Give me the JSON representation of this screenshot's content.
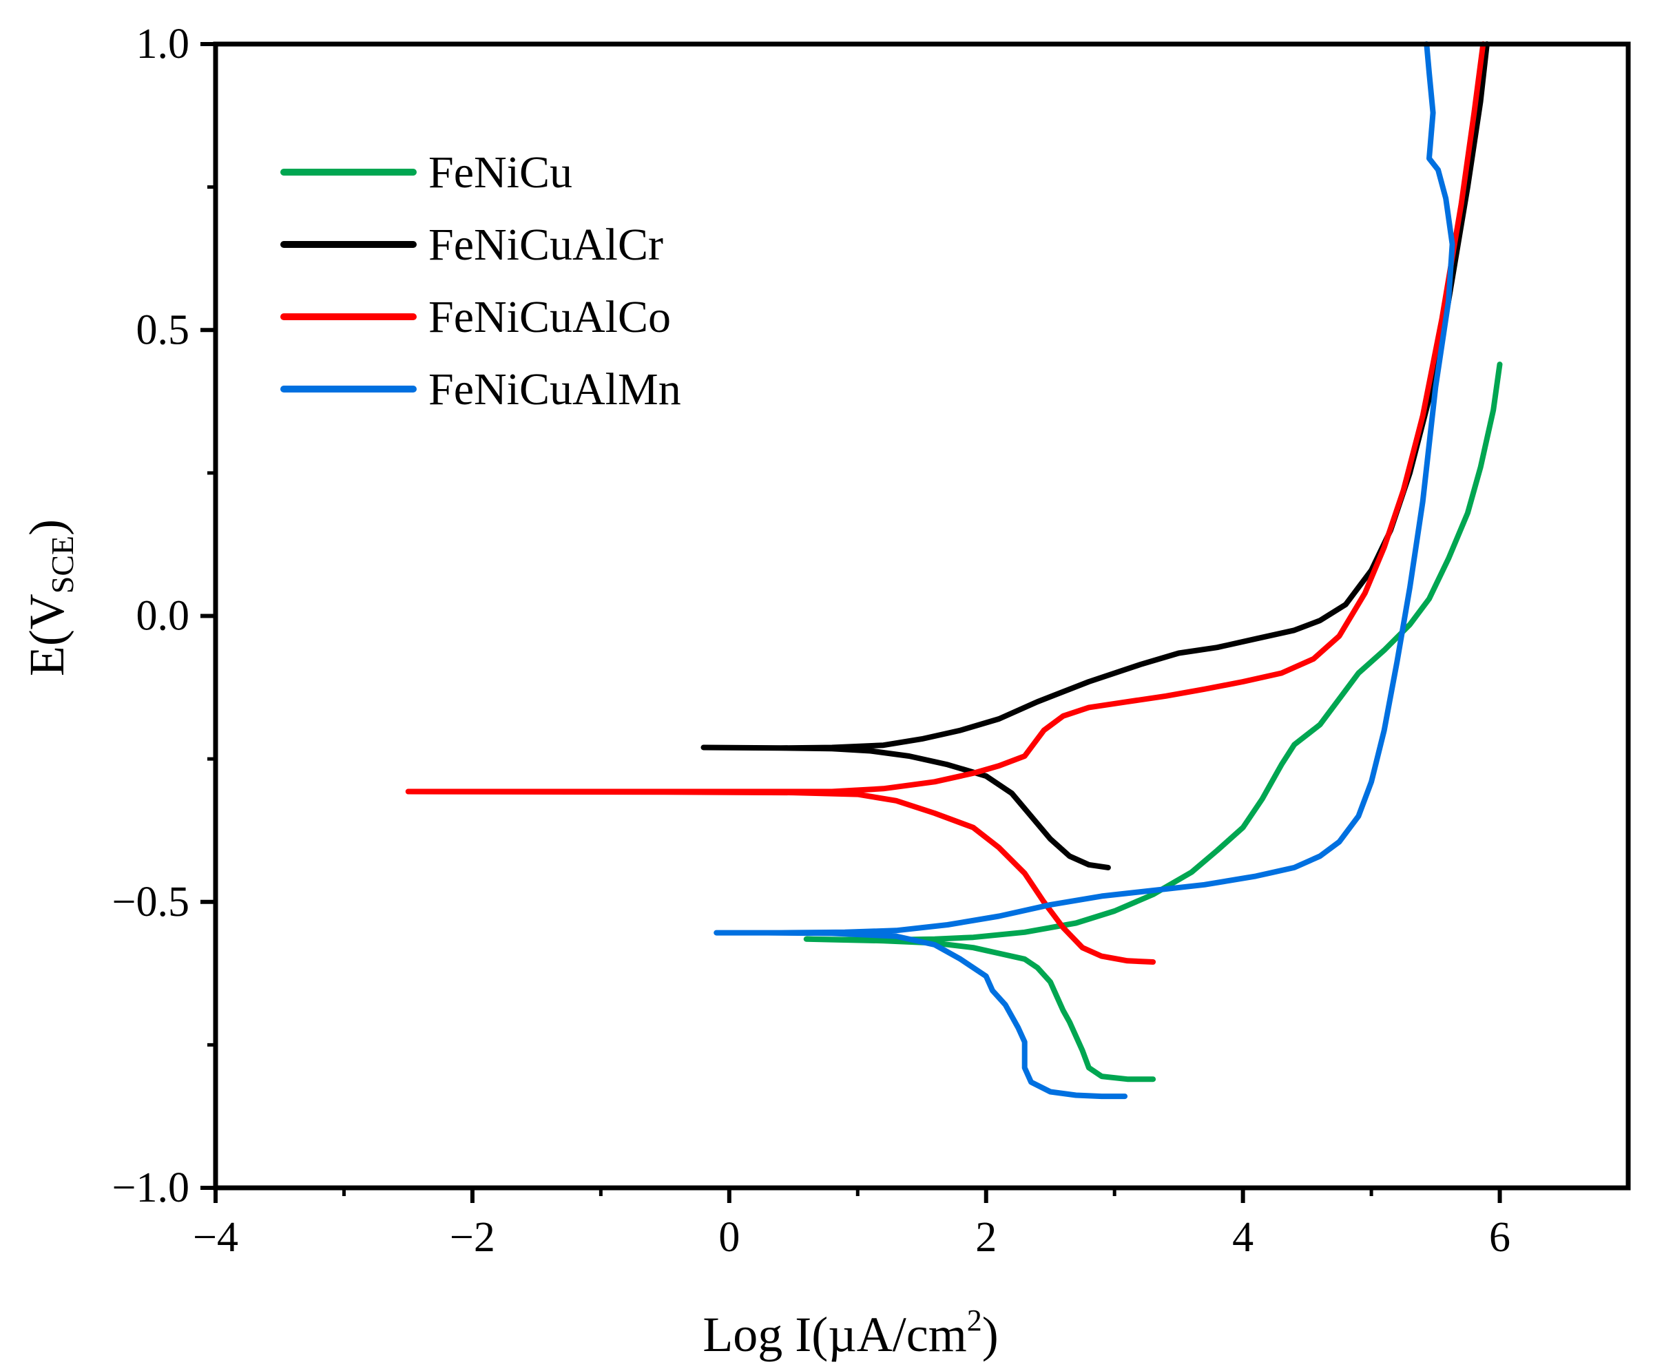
{
  "chart_data": {
    "type": "line",
    "title": "",
    "xlabel": "Log I(µA/cm",
    "xlabel_sup": "2",
    "xlabel_end": ")",
    "ylabel": "E(V",
    "ylabel_sub": "SCE",
    "ylabel_end": ")",
    "xlim": [
      -4,
      7
    ],
    "ylim": [
      -1.0,
      1.0
    ],
    "x_ticks": [
      -4,
      -2,
      0,
      2,
      4,
      6
    ],
    "x_tick_labels": [
      "−4",
      "−2",
      "0",
      "2",
      "4",
      "6"
    ],
    "y_ticks": [
      -1.0,
      -0.5,
      0.0,
      0.5,
      1.0
    ],
    "y_tick_labels": [
      "−1.0",
      "−0.5",
      "0.0",
      "0.5",
      "1.0"
    ],
    "grid": false,
    "legend_position": "top-left",
    "series": [
      {
        "name": "FeNiCu",
        "color": "#00a651",
        "points": [
          [
            3.3,
            -0.81
          ],
          [
            3.1,
            -0.81
          ],
          [
            2.9,
            -0.805
          ],
          [
            2.8,
            -0.79
          ],
          [
            2.75,
            -0.76
          ],
          [
            2.65,
            -0.71
          ],
          [
            2.6,
            -0.69
          ],
          [
            2.55,
            -0.665
          ],
          [
            2.5,
            -0.64
          ],
          [
            2.4,
            -0.615
          ],
          [
            2.3,
            -0.6
          ],
          [
            2.1,
            -0.59
          ],
          [
            1.9,
            -0.58
          ],
          [
            1.6,
            -0.572
          ],
          [
            1.2,
            -0.568
          ],
          [
            0.8,
            -0.566
          ],
          [
            0.6,
            -0.565
          ],
          [
            0.9,
            -0.566
          ],
          [
            1.3,
            -0.566
          ],
          [
            1.6,
            -0.565
          ],
          [
            1.9,
            -0.562
          ],
          [
            2.3,
            -0.553
          ],
          [
            2.7,
            -0.537
          ],
          [
            3.0,
            -0.516
          ],
          [
            3.3,
            -0.487
          ],
          [
            3.6,
            -0.448
          ],
          [
            3.8,
            -0.41
          ],
          [
            4.0,
            -0.37
          ],
          [
            4.15,
            -0.32
          ],
          [
            4.3,
            -0.26
          ],
          [
            4.4,
            -0.225
          ],
          [
            4.6,
            -0.19
          ],
          [
            4.75,
            -0.145
          ],
          [
            4.9,
            -0.1
          ],
          [
            5.1,
            -0.06
          ],
          [
            5.3,
            -0.015
          ],
          [
            5.45,
            0.03
          ],
          [
            5.6,
            0.1
          ],
          [
            5.75,
            0.18
          ],
          [
            5.85,
            0.26
          ],
          [
            5.95,
            0.36
          ],
          [
            6.0,
            0.44
          ]
        ]
      },
      {
        "name": "FeNiCuAlCr",
        "color": "#000000",
        "points": [
          [
            2.95,
            -0.44
          ],
          [
            2.8,
            -0.435
          ],
          [
            2.65,
            -0.42
          ],
          [
            2.5,
            -0.39
          ],
          [
            2.35,
            -0.35
          ],
          [
            2.2,
            -0.31
          ],
          [
            2.0,
            -0.28
          ],
          [
            1.7,
            -0.26
          ],
          [
            1.4,
            -0.245
          ],
          [
            1.1,
            -0.236
          ],
          [
            0.8,
            -0.232
          ],
          [
            0.4,
            -0.231
          ],
          [
            -0.2,
            -0.23
          ],
          [
            0.4,
            -0.231
          ],
          [
            0.8,
            -0.23
          ],
          [
            1.2,
            -0.226
          ],
          [
            1.5,
            -0.215
          ],
          [
            1.8,
            -0.2
          ],
          [
            2.1,
            -0.18
          ],
          [
            2.4,
            -0.15
          ],
          [
            2.8,
            -0.115
          ],
          [
            3.2,
            -0.085
          ],
          [
            3.5,
            -0.065
          ],
          [
            3.8,
            -0.055
          ],
          [
            4.1,
            -0.04
          ],
          [
            4.4,
            -0.025
          ],
          [
            4.6,
            -0.008
          ],
          [
            4.8,
            0.02
          ],
          [
            5.0,
            0.08
          ],
          [
            5.15,
            0.15
          ],
          [
            5.3,
            0.25
          ],
          [
            5.45,
            0.38
          ],
          [
            5.6,
            0.55
          ],
          [
            5.75,
            0.75
          ],
          [
            5.85,
            0.9
          ],
          [
            5.9,
            1.0
          ]
        ]
      },
      {
        "name": "FeNiCuAlCo",
        "color": "#ff0000",
        "points": [
          [
            3.3,
            -0.605
          ],
          [
            3.1,
            -0.603
          ],
          [
            2.9,
            -0.595
          ],
          [
            2.75,
            -0.58
          ],
          [
            2.6,
            -0.545
          ],
          [
            2.45,
            -0.5
          ],
          [
            2.3,
            -0.45
          ],
          [
            2.1,
            -0.405
          ],
          [
            1.9,
            -0.37
          ],
          [
            1.6,
            -0.345
          ],
          [
            1.3,
            -0.323
          ],
          [
            1.0,
            -0.312
          ],
          [
            0.5,
            -0.309
          ],
          [
            -0.5,
            -0.308
          ],
          [
            -2.5,
            -0.307
          ],
          [
            -0.5,
            -0.307
          ],
          [
            0.3,
            -0.307
          ],
          [
            0.8,
            -0.307
          ],
          [
            1.2,
            -0.302
          ],
          [
            1.6,
            -0.29
          ],
          [
            1.9,
            -0.275
          ],
          [
            2.1,
            -0.262
          ],
          [
            2.3,
            -0.245
          ],
          [
            2.45,
            -0.2
          ],
          [
            2.6,
            -0.175
          ],
          [
            2.8,
            -0.16
          ],
          [
            3.1,
            -0.15
          ],
          [
            3.4,
            -0.14
          ],
          [
            3.7,
            -0.128
          ],
          [
            4.0,
            -0.115
          ],
          [
            4.3,
            -0.1
          ],
          [
            4.55,
            -0.075
          ],
          [
            4.75,
            -0.035
          ],
          [
            4.95,
            0.04
          ],
          [
            5.1,
            0.12
          ],
          [
            5.25,
            0.22
          ],
          [
            5.4,
            0.35
          ],
          [
            5.55,
            0.52
          ],
          [
            5.7,
            0.72
          ],
          [
            5.8,
            0.88
          ],
          [
            5.87,
            1.0
          ]
        ]
      },
      {
        "name": "FeNiCuAlMn",
        "color": "#0070e0",
        "points": [
          [
            3.08,
            -0.84
          ],
          [
            2.9,
            -0.84
          ],
          [
            2.7,
            -0.838
          ],
          [
            2.5,
            -0.832
          ],
          [
            2.35,
            -0.815
          ],
          [
            2.3,
            -0.79
          ],
          [
            2.3,
            -0.76
          ],
          [
            2.3,
            -0.745
          ],
          [
            2.25,
            -0.72
          ],
          [
            2.2,
            -0.7
          ],
          [
            2.15,
            -0.68
          ],
          [
            2.05,
            -0.655
          ],
          [
            2.0,
            -0.63
          ],
          [
            1.8,
            -0.6
          ],
          [
            1.6,
            -0.575
          ],
          [
            1.3,
            -0.56
          ],
          [
            0.8,
            -0.555
          ],
          [
            0.3,
            -0.554
          ],
          [
            -0.1,
            -0.554
          ],
          [
            0.4,
            -0.554
          ],
          [
            0.9,
            -0.553
          ],
          [
            1.3,
            -0.55
          ],
          [
            1.7,
            -0.54
          ],
          [
            2.1,
            -0.525
          ],
          [
            2.5,
            -0.505
          ],
          [
            2.9,
            -0.49
          ],
          [
            3.3,
            -0.48
          ],
          [
            3.7,
            -0.47
          ],
          [
            4.1,
            -0.455
          ],
          [
            4.4,
            -0.44
          ],
          [
            4.6,
            -0.42
          ],
          [
            4.75,
            -0.395
          ],
          [
            4.9,
            -0.35
          ],
          [
            5.0,
            -0.29
          ],
          [
            5.1,
            -0.2
          ],
          [
            5.2,
            -0.08
          ],
          [
            5.3,
            0.05
          ],
          [
            5.4,
            0.2
          ],
          [
            5.5,
            0.4
          ],
          [
            5.6,
            0.55
          ],
          [
            5.63,
            0.65
          ],
          [
            5.58,
            0.73
          ],
          [
            5.52,
            0.78
          ],
          [
            5.45,
            0.8
          ],
          [
            5.48,
            0.88
          ],
          [
            5.45,
            0.95
          ],
          [
            5.43,
            1.0
          ]
        ]
      }
    ]
  }
}
